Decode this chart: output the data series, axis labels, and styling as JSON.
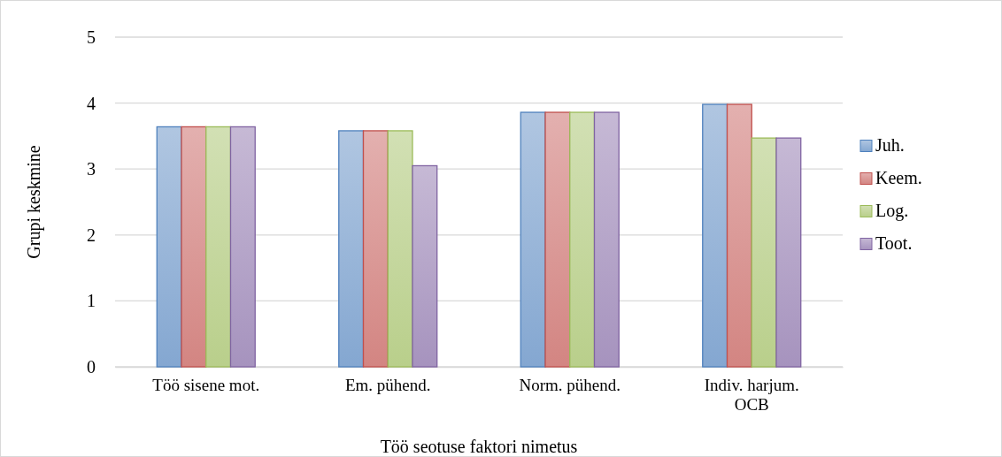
{
  "chart_data": {
    "type": "bar",
    "xlabel": "Töö seotuse faktori nimetus",
    "ylabel": "Grupi keskmine",
    "categories": [
      "Töö sisene mot.",
      "Em. pühend.",
      "Norm. pühend.",
      "Indiv. harjum. OCB"
    ],
    "series": [
      {
        "name": "Juh.",
        "color": "#4f81bd",
        "values": [
          3.64,
          3.58,
          3.86,
          3.98
        ]
      },
      {
        "name": "Keem.",
        "color": "#c0504d",
        "values": [
          3.64,
          3.58,
          3.86,
          3.98
        ]
      },
      {
        "name": "Log.",
        "color": "#9bbb59",
        "values": [
          3.64,
          3.58,
          3.86,
          3.47
        ]
      },
      {
        "name": "Toot.",
        "color": "#8064a2",
        "values": [
          3.64,
          3.05,
          3.86,
          3.47
        ]
      }
    ],
    "ylim": [
      0,
      5
    ],
    "yticks": [
      0,
      1,
      2,
      3,
      4,
      5
    ],
    "grid": "y",
    "legend": "right"
  }
}
